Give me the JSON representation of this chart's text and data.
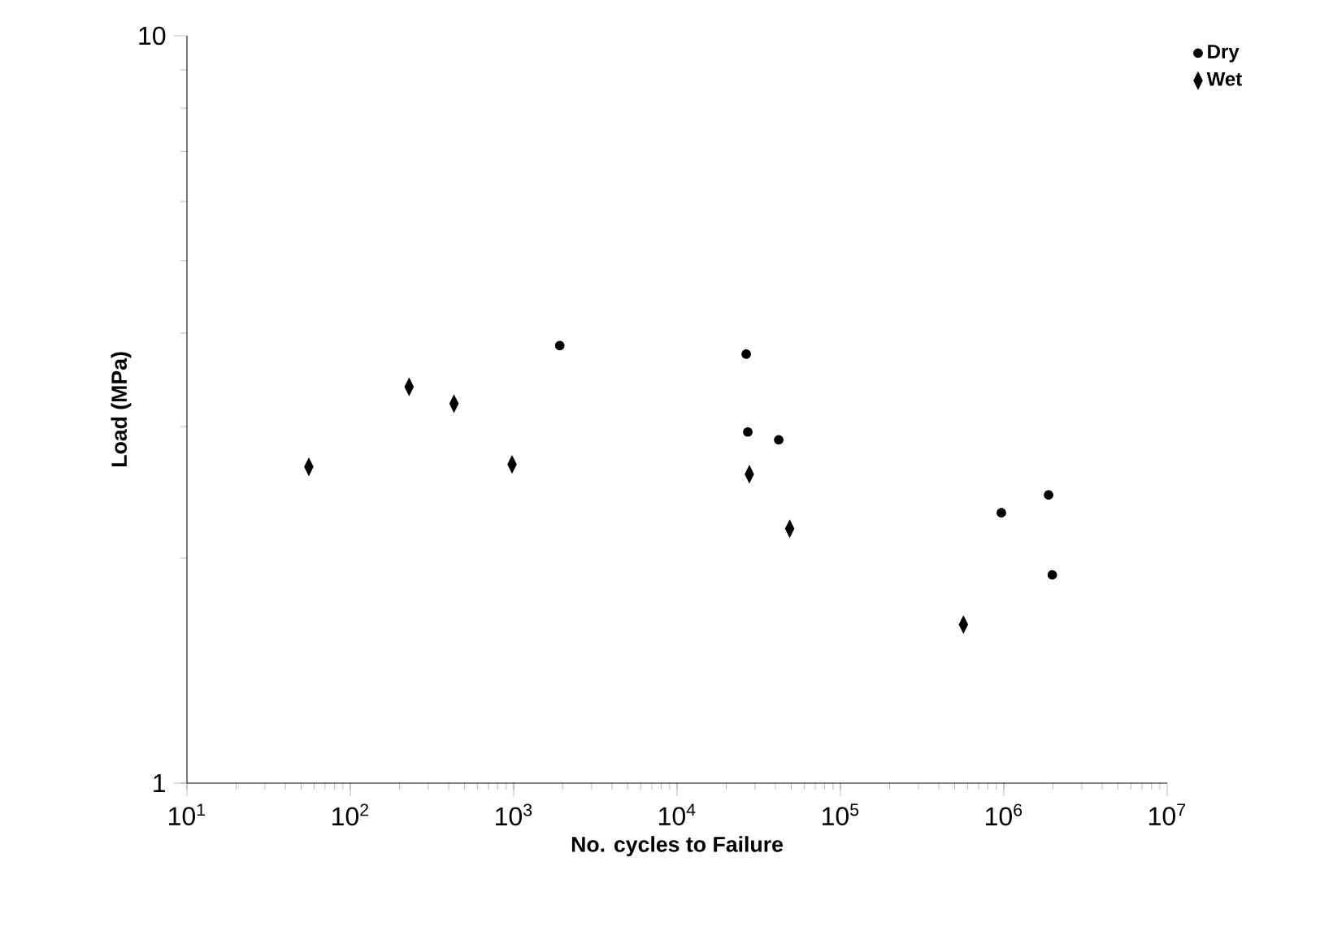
{
  "chart_data": {
    "type": "scatter",
    "xlabel": "No. cycles to Failure",
    "ylabel": "Load (MPa)",
    "log": "xy",
    "xlim": [
      10,
      10000000
    ],
    "ylim": [
      1,
      10
    ],
    "xticks": [
      {
        "value": 10,
        "label": "10$^{1}$"
      },
      {
        "value": 100,
        "label": "10$^{2}$"
      },
      {
        "value": 1000,
        "label": "10$^{3}$"
      },
      {
        "value": 10000,
        "label": "10$^{4}$"
      },
      {
        "value": 100000,
        "label": "10$^{5}$"
      },
      {
        "value": 1000000,
        "label": "10$^{6}$"
      },
      {
        "value": 10000000,
        "label": "10$^{7}$"
      }
    ],
    "yticks": [
      1,
      10
    ],
    "legend": "top right",
    "grid": false,
    "series": [
      {
        "name": "Dry",
        "color": "#000000",
        "marker": "circle",
        "x": [
          1914,
          26500,
          27100,
          41900,
          966000,
          1880000,
          1980000
        ],
        "values": [
          3.85,
          3.75,
          2.95,
          2.88,
          2.3,
          2.43,
          1.9
        ]
      },
      {
        "name": "Wet",
        "color": "#000000",
        "marker": "diamond",
        "x": [
          55.7,
          229,
          431,
          977,
          27700,
          48900,
          566000
        ],
        "values": [
          2.65,
          3.39,
          3.22,
          2.67,
          2.59,
          2.19,
          1.63
        ]
      }
    ]
  }
}
